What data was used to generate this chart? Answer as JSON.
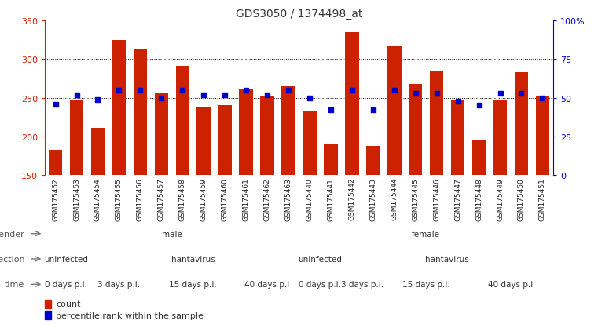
{
  "title": "GDS3050 / 1374498_at",
  "samples": [
    "GSM175452",
    "GSM175453",
    "GSM175454",
    "GSM175455",
    "GSM175456",
    "GSM175457",
    "GSM175458",
    "GSM175459",
    "GSM175460",
    "GSM175461",
    "GSM175462",
    "GSM175463",
    "GSM175440",
    "GSM175441",
    "GSM175442",
    "GSM175443",
    "GSM175444",
    "GSM175445",
    "GSM175446",
    "GSM175447",
    "GSM175448",
    "GSM175449",
    "GSM175450",
    "GSM175451"
  ],
  "counts": [
    183,
    248,
    211,
    325,
    314,
    257,
    291,
    238,
    240,
    262,
    252,
    265,
    232,
    190,
    335,
    188,
    318,
    268,
    284,
    248,
    195,
    248,
    283,
    252
  ],
  "percentiles": [
    46,
    52,
    49,
    55,
    55,
    50,
    55,
    52,
    52,
    55,
    52,
    55,
    50,
    42,
    55,
    42,
    55,
    53,
    53,
    48,
    45,
    53,
    53,
    50
  ],
  "ylim_left": [
    150,
    350
  ],
  "ylim_right": [
    0,
    100
  ],
  "yticks_left": [
    150,
    200,
    250,
    300,
    350
  ],
  "yticks_right": [
    0,
    25,
    50,
    75,
    100
  ],
  "ytick_labels_right": [
    "0",
    "25",
    "50",
    "75",
    "100%"
  ],
  "bar_color": "#CC2200",
  "dot_color": "#0000CC",
  "background_color": "#FFFFFF",
  "title_color": "#444444",
  "gender_groups": [
    {
      "label": "male",
      "start": 0,
      "end": 12,
      "color": "#AADDAA"
    },
    {
      "label": "female",
      "start": 12,
      "end": 24,
      "color": "#66BB66"
    }
  ],
  "infection_groups": [
    {
      "label": "uninfected",
      "start": 0,
      "end": 2,
      "color": "#CCCCEE"
    },
    {
      "label": "hantavirus",
      "start": 2,
      "end": 12,
      "color": "#9999CC"
    },
    {
      "label": "uninfected",
      "start": 12,
      "end": 14,
      "color": "#CCCCEE"
    },
    {
      "label": "hantavirus",
      "start": 14,
      "end": 24,
      "color": "#9999CC"
    }
  ],
  "time_groups": [
    {
      "label": "0 days p.i.",
      "start": 0,
      "end": 2,
      "color": "#FFDDDD"
    },
    {
      "label": "3 days p.i.",
      "start": 2,
      "end": 5,
      "color": "#FFBBBB"
    },
    {
      "label": "15 days p.i.",
      "start": 5,
      "end": 9,
      "color": "#FFAAAA"
    },
    {
      "label": "40 days p.i",
      "start": 9,
      "end": 12,
      "color": "#EE9999"
    },
    {
      "label": "0 days p.i.",
      "start": 12,
      "end": 14,
      "color": "#FFDDDD"
    },
    {
      "label": "3 days p.i.",
      "start": 14,
      "end": 16,
      "color": "#FFBBBB"
    },
    {
      "label": "15 days p.i.",
      "start": 16,
      "end": 20,
      "color": "#FFAAAA"
    },
    {
      "label": "40 days p.i",
      "start": 20,
      "end": 24,
      "color": "#EE9999"
    }
  ],
  "row_labels": [
    "gender",
    "infection",
    "time"
  ],
  "legend_items": [
    {
      "label": "count",
      "color": "#CC2200"
    },
    {
      "label": "percentile rank within the sample",
      "color": "#0000CC"
    }
  ]
}
